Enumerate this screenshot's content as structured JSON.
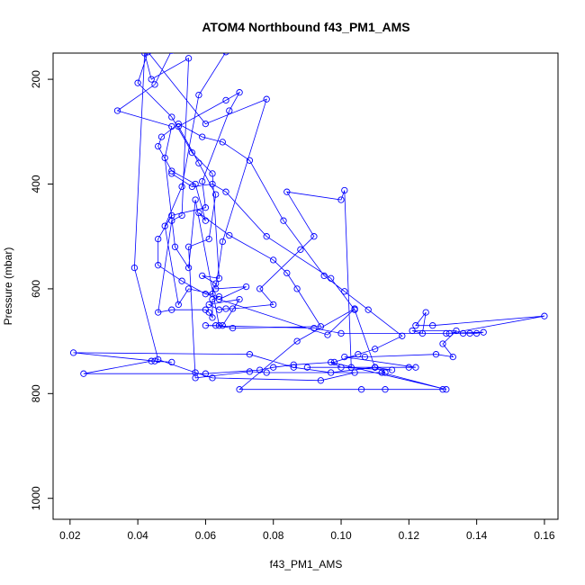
{
  "chart_data": {
    "type": "line",
    "title": "ATOM4 Northbound f43_PM1_AMS",
    "xlabel": "f43_PM1_AMS",
    "ylabel": "Pressure (mbar)",
    "xlim": [
      0.015,
      0.164
    ],
    "ylim": [
      1040,
      150
    ],
    "y_reversed": true,
    "x_ticks": [
      0.02,
      0.04,
      0.06,
      0.08,
      0.1,
      0.12,
      0.14,
      0.16
    ],
    "x_tick_labels": [
      "0.02",
      "0.04",
      "0.06",
      "0.08",
      "0.10",
      "0.12",
      "0.14",
      "0.16"
    ],
    "y_ticks": [
      200,
      400,
      600,
      800,
      1000
    ],
    "y_tick_labels": [
      "200",
      "400",
      "600",
      "800",
      "1000"
    ],
    "grid": false,
    "legend": "none",
    "series": [
      {
        "color": "#0000ff",
        "marker": "open-circle",
        "line": true,
        "points": [
          [
            0.13,
            792
          ],
          [
            0.113,
            792
          ],
          [
            0.106,
            792
          ],
          [
            0.07,
            792
          ],
          [
            0.087,
            700
          ],
          [
            0.104,
            638
          ],
          [
            0.096,
            688
          ],
          [
            0.064,
            620
          ],
          [
            0.072,
            596
          ],
          [
            0.063,
            600
          ],
          [
            0.065,
            510
          ],
          [
            0.078,
            238
          ],
          [
            0.06,
            285
          ],
          [
            0.043,
            148
          ],
          [
            0.04,
            207
          ],
          [
            0.05,
            272
          ],
          [
            0.056,
            340
          ],
          [
            0.062,
            380
          ],
          [
            0.064,
            580
          ],
          [
            0.059,
            575
          ],
          [
            0.063,
            590
          ],
          [
            0.062,
            610
          ],
          [
            0.055,
            600
          ],
          [
            0.052,
            630
          ],
          [
            0.048,
            480
          ],
          [
            0.053,
            405
          ],
          [
            0.058,
            230
          ],
          [
            0.066,
            148
          ],
          [
            0.05,
            145
          ],
          [
            0.045,
            210
          ],
          [
            0.034,
            260
          ],
          [
            0.05,
            290
          ],
          [
            0.048,
            350
          ],
          [
            0.051,
            520
          ],
          [
            0.055,
            560
          ],
          [
            0.057,
            430
          ],
          [
            0.064,
            670
          ],
          [
            0.065,
            670
          ],
          [
            0.07,
            620
          ],
          [
            0.061,
            630
          ],
          [
            0.064,
            640
          ],
          [
            0.066,
            638
          ],
          [
            0.068,
            638
          ],
          [
            0.08,
            630
          ],
          [
            0.076,
            600
          ],
          [
            0.088,
            525
          ],
          [
            0.092,
            500
          ],
          [
            0.084,
            415
          ],
          [
            0.1,
            430
          ],
          [
            0.101,
            412
          ],
          [
            0.103,
            750
          ],
          [
            0.09,
            750
          ],
          [
            0.11,
            750
          ],
          [
            0.12,
            750
          ],
          [
            0.122,
            750
          ],
          [
            0.101,
            730
          ],
          [
            0.107,
            730
          ],
          [
            0.128,
            725
          ],
          [
            0.133,
            730
          ],
          [
            0.13,
            705
          ],
          [
            0.134,
            680
          ],
          [
            0.121,
            680
          ],
          [
            0.124,
            685
          ],
          [
            0.125,
            645
          ],
          [
            0.122,
            670
          ],
          [
            0.127,
            670
          ],
          [
            0.16,
            652
          ],
          [
            0.132,
            685
          ],
          [
            0.136,
            685
          ],
          [
            0.138,
            685
          ],
          [
            0.14,
            685
          ],
          [
            0.142,
            683
          ],
          [
            0.131,
            685
          ],
          [
            0.1,
            685
          ],
          [
            0.092,
            675
          ],
          [
            0.06,
            670
          ],
          [
            0.063,
            670
          ],
          [
            0.068,
            675
          ],
          [
            0.094,
            672
          ],
          [
            0.087,
            600
          ],
          [
            0.084,
            570
          ],
          [
            0.08,
            545
          ],
          [
            0.067,
            498
          ],
          [
            0.058,
            455
          ],
          [
            0.06,
            470
          ],
          [
            0.057,
            400
          ],
          [
            0.05,
            375
          ],
          [
            0.046,
            328
          ],
          [
            0.047,
            310
          ],
          [
            0.052,
            285
          ],
          [
            0.059,
            310
          ],
          [
            0.065,
            320
          ],
          [
            0.073,
            355
          ],
          [
            0.083,
            470
          ],
          [
            0.095,
            575
          ],
          [
            0.101,
            605
          ],
          [
            0.108,
            640
          ],
          [
            0.118,
            690
          ],
          [
            0.11,
            715
          ],
          [
            0.105,
            725
          ],
          [
            0.098,
            740
          ],
          [
            0.086,
            745
          ],
          [
            0.08,
            750
          ],
          [
            0.076,
            755
          ],
          [
            0.06,
            762
          ],
          [
            0.024,
            762
          ],
          [
            0.044,
            738
          ],
          [
            0.05,
            740
          ],
          [
            0.045,
            738
          ],
          [
            0.021,
            722
          ],
          [
            0.073,
            725
          ],
          [
            0.086,
            750
          ],
          [
            0.097,
            760
          ],
          [
            0.11,
            750
          ],
          [
            0.113,
            760
          ],
          [
            0.078,
            760
          ],
          [
            0.073,
            758
          ],
          [
            0.057,
            770
          ],
          [
            0.055,
            520
          ],
          [
            0.061,
            505
          ],
          [
            0.063,
            420
          ],
          [
            0.058,
            360
          ],
          [
            0.052,
            290
          ],
          [
            0.066,
            240
          ],
          [
            0.07,
            225
          ],
          [
            0.067,
            260
          ],
          [
            0.059,
            395
          ],
          [
            0.06,
            445
          ],
          [
            0.05,
            460
          ],
          [
            0.046,
            505
          ],
          [
            0.046,
            555
          ],
          [
            0.053,
            585
          ],
          [
            0.06,
            610
          ],
          [
            0.064,
            615
          ],
          [
            0.062,
            620
          ],
          [
            0.062,
            655
          ],
          [
            0.061,
            645
          ],
          [
            0.06,
            640
          ],
          [
            0.05,
            640
          ],
          [
            0.046,
            645
          ],
          [
            0.05,
            470
          ],
          [
            0.053,
            460
          ],
          [
            0.055,
            160
          ],
          [
            0.044,
            200
          ],
          [
            0.042,
            150
          ],
          [
            0.039,
            560
          ],
          [
            0.046,
            735
          ],
          [
            0.057,
            760
          ],
          [
            0.062,
            770
          ],
          [
            0.094,
            775
          ],
          [
            0.104,
            760
          ],
          [
            0.112,
            760
          ],
          [
            0.131,
            792
          ],
          [
            0.097,
            740
          ],
          [
            0.1,
            750
          ],
          [
            0.115,
            755
          ],
          [
            0.11,
            750
          ],
          [
            0.104,
            640
          ],
          [
            0.097,
            580
          ],
          [
            0.078,
            500
          ],
          [
            0.066,
            415
          ],
          [
            0.062,
            400
          ],
          [
            0.056,
            405
          ],
          [
            0.05,
            380
          ]
        ]
      }
    ]
  }
}
